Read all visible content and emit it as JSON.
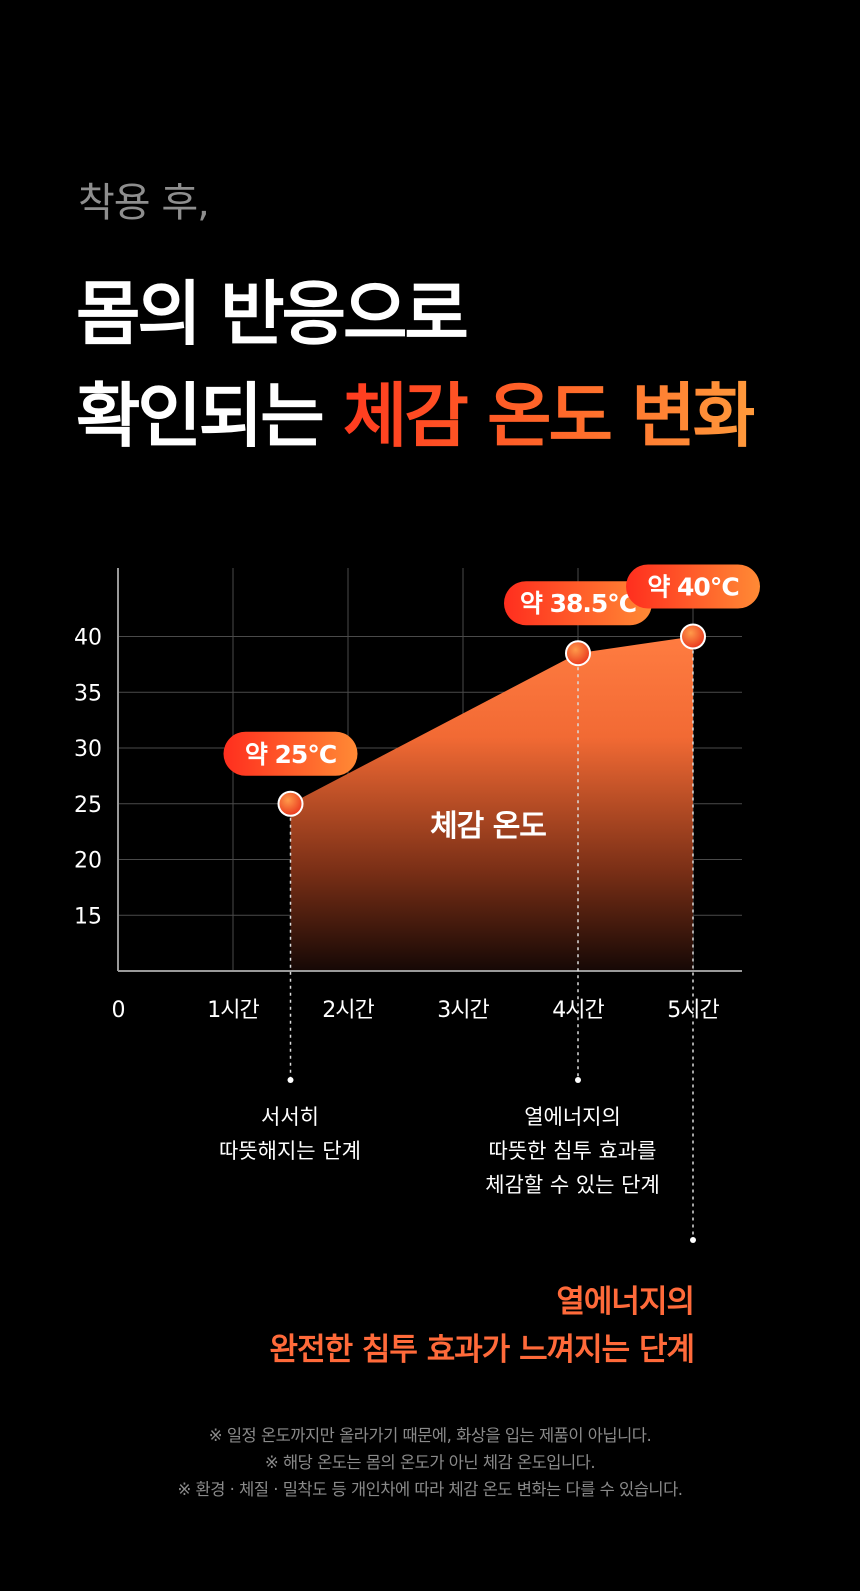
{
  "header": {
    "intro": "착용 후,",
    "headline_line1": "몸의 반응으로",
    "headline_line2_prefix": "확인되는 ",
    "headline_line2_accent": "체감 온도 변화"
  },
  "chart_data": {
    "type": "area",
    "title": "",
    "xlabel": "",
    "ylabel": "",
    "x_tick_labels": [
      "0",
      "1시간",
      "2시간",
      "3시간",
      "4시간",
      "5시간"
    ],
    "y_ticks": [
      15,
      20,
      25,
      30,
      35,
      40
    ],
    "xlim": [
      0,
      5.4
    ],
    "ylim": [
      10,
      45
    ],
    "series": [
      {
        "name": "체감 온도",
        "x": [
          1.5,
          4.0,
          5.0
        ],
        "y": [
          25,
          38.5,
          40
        ]
      }
    ],
    "point_labels": [
      "약 25°C",
      "약 38.5°C",
      "약 40°C"
    ],
    "grid": true,
    "colors": {
      "area_top": "#ff7c41",
      "area_bottom": "#160805",
      "badge_start": "#ff2e1e",
      "badge_end": "#ff8a35"
    }
  },
  "stages": {
    "stage1": [
      "서서히",
      "따뜻해지는 단계"
    ],
    "stage2": [
      "열에너지의",
      "따뜻한 침투 효과를",
      "체감할 수 있는 단계"
    ],
    "stage3": [
      "열에너지의",
      "완전한 침투 효과가 느껴지는 단계"
    ]
  },
  "notes": [
    "※ 일정 온도까지만 올라가기 때문에, 화상을 입는 제품이 아닙니다.",
    "※ 해당 온도는 몸의 온도가 아닌 체감 온도입니다.",
    "※ 환경 · 체질 · 밀착도 등 개인차에 따라 체감 온도 변화는 다를 수 있습니다."
  ]
}
